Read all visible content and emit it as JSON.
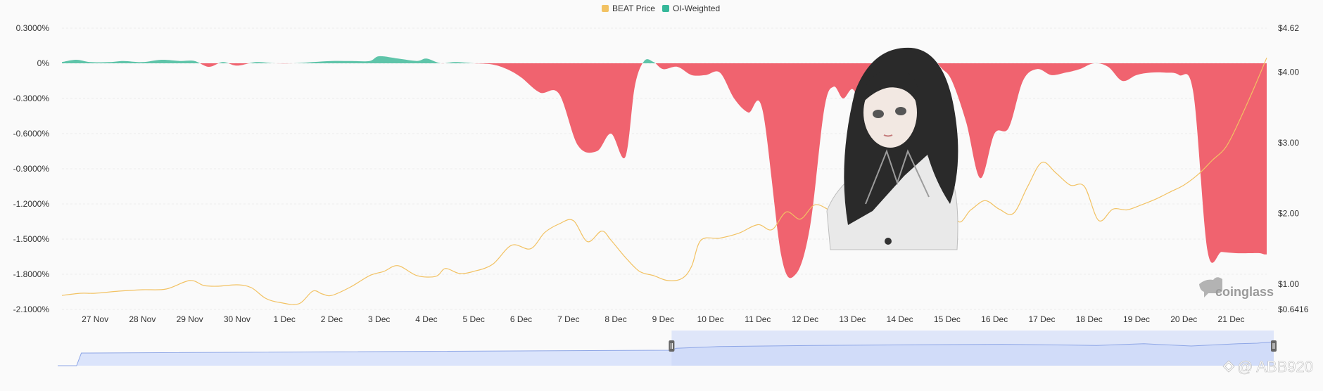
{
  "legend": [
    {
      "name": "BEAT Price",
      "color": "#f2c263"
    },
    {
      "name": "OI-Weighted",
      "color": "#36b89a"
    }
  ],
  "colors": {
    "positive_fill": "#5ec4a9",
    "negative_fill": "#f0636f",
    "price_line": "#f2c263",
    "navigator_fill": "#dbe4fb",
    "navigator_line": "#8ea6e6"
  },
  "watermark": "coinglass",
  "credit": "@ ABB920",
  "illustration": "anime-girl-portrait",
  "chart_data": {
    "type": "area",
    "y_left": {
      "ticks": [
        "0.3000%",
        "0%",
        "-0.3000%",
        "-0.6000%",
        "-0.9000%",
        "-1.2000%",
        "-1.5000%",
        "-1.8000%",
        "-2.1000%"
      ],
      "min": -2.1,
      "max": 0.3,
      "unit": "%"
    },
    "y_right": {
      "ticks": [
        "$4.62",
        "$4.00",
        "$3.00",
        "$2.00",
        "$1.00",
        "$0.6416"
      ],
      "tick_values": [
        4.62,
        4.0,
        3.0,
        2.0,
        1.0,
        0.6416
      ],
      "min": 0.6416,
      "max": 4.62
    },
    "x": {
      "ticks": [
        "27 Nov",
        "28 Nov",
        "29 Nov",
        "30 Nov",
        "1 Dec",
        "2 Dec",
        "3 Dec",
        "4 Dec",
        "5 Dec",
        "6 Dec",
        "7 Dec",
        "8 Dec",
        "9 Dec",
        "10 Dec",
        "11 Dec",
        "12 Dec",
        "13 Dec",
        "14 Dec",
        "15 Dec",
        "16 Dec",
        "17 Dec",
        "18 Dec",
        "19 Dec",
        "20 Dec",
        "21 Dec"
      ],
      "tick_positions": [
        1,
        2,
        3,
        4,
        5,
        6,
        7,
        8,
        9,
        10,
        11,
        12,
        13,
        14,
        15,
        16,
        17,
        18,
        19,
        20,
        21,
        22,
        23,
        24,
        25
      ],
      "min": 0.3,
      "max": 25.75
    },
    "series": [
      {
        "name": "OI-Weighted",
        "axis": "left",
        "x": [
          0.3,
          0.6,
          0.9,
          1.3,
          1.6,
          2.0,
          2.4,
          2.8,
          3.1,
          3.4,
          3.7,
          4.0,
          4.4,
          4.8,
          5.2,
          5.6,
          6.0,
          6.4,
          6.8,
          7.0,
          7.4,
          7.8,
          8.0,
          8.3,
          8.6,
          9.0,
          9.4,
          9.7,
          10.0,
          10.4,
          10.8,
          11.2,
          11.6,
          11.9,
          12.2,
          12.4,
          12.6,
          12.8,
          13.0,
          13.3,
          13.6,
          13.9,
          14.2,
          14.5,
          14.8,
          15.1,
          15.5,
          15.8,
          16.1,
          16.4,
          16.6,
          16.8,
          17.0,
          17.2,
          17.4,
          17.7,
          18.0,
          18.3,
          18.5,
          18.7,
          18.9,
          19.1,
          19.4,
          19.7,
          20.0,
          20.3,
          20.6,
          20.9,
          21.2,
          21.5,
          21.8,
          22.1,
          22.4,
          22.7,
          23.0,
          23.3,
          23.6,
          23.9,
          24.2,
          24.5,
          24.8,
          25.1,
          25.4,
          25.6,
          25.7,
          25.75
        ],
        "y": [
          0.01,
          0.03,
          0.01,
          0.01,
          0.02,
          0.01,
          0.03,
          0.02,
          0.02,
          -0.03,
          0.01,
          -0.02,
          0.01,
          0.0,
          0.0,
          0.01,
          0.02,
          0.02,
          0.02,
          0.06,
          0.04,
          0.02,
          0.04,
          0.0,
          0.01,
          0.0,
          -0.01,
          -0.05,
          -0.12,
          -0.25,
          -0.26,
          -0.7,
          -0.75,
          -0.6,
          -0.8,
          -0.2,
          0.02,
          0.01,
          -0.05,
          -0.03,
          -0.1,
          -0.1,
          -0.08,
          -0.3,
          -0.42,
          -0.4,
          -1.65,
          -1.8,
          -1.4,
          -0.4,
          -0.2,
          -0.3,
          -0.22,
          -0.35,
          -0.25,
          -0.1,
          -0.02,
          -0.05,
          -0.2,
          0.01,
          -0.05,
          -0.15,
          -0.5,
          -0.98,
          -0.6,
          -0.55,
          -0.15,
          -0.05,
          -0.1,
          -0.08,
          -0.05,
          0.0,
          -0.03,
          -0.15,
          -0.1,
          -0.08,
          -0.08,
          -0.1,
          -0.25,
          -1.6,
          -1.61,
          -1.62,
          -1.62,
          -1.62,
          -1.63,
          -1.63
        ]
      },
      {
        "name": "BEAT Price",
        "axis": "right",
        "x": [
          0.3,
          0.7,
          1.0,
          1.5,
          2.0,
          2.5,
          3.0,
          3.3,
          3.6,
          4.0,
          4.3,
          4.6,
          4.9,
          5.3,
          5.6,
          5.8,
          6.0,
          6.4,
          6.8,
          7.1,
          7.4,
          7.8,
          8.2,
          8.4,
          8.7,
          9.0,
          9.4,
          9.8,
          10.2,
          10.5,
          10.8,
          11.1,
          11.4,
          11.7,
          11.9,
          12.2,
          12.5,
          12.8,
          13.1,
          13.4,
          13.6,
          13.8,
          14.2,
          14.6,
          15.0,
          15.3,
          15.6,
          15.9,
          16.2,
          16.5,
          16.8,
          17.1,
          17.4,
          17.7,
          18.0,
          18.3,
          18.6,
          18.9,
          19.2,
          19.5,
          19.8,
          20.1,
          20.4,
          20.7,
          21.0,
          21.3,
          21.6,
          21.9,
          22.2,
          22.5,
          22.8,
          23.1,
          23.4,
          23.7,
          24.0,
          24.3,
          24.6,
          24.9,
          25.2,
          25.5,
          25.75
        ],
        "y": [
          0.84,
          0.87,
          0.87,
          0.9,
          0.92,
          0.93,
          1.05,
          0.98,
          0.97,
          0.99,
          0.95,
          0.8,
          0.74,
          0.72,
          0.9,
          0.86,
          0.84,
          0.96,
          1.12,
          1.18,
          1.26,
          1.12,
          1.11,
          1.22,
          1.15,
          1.18,
          1.28,
          1.55,
          1.5,
          1.73,
          1.85,
          1.9,
          1.6,
          1.75,
          1.62,
          1.38,
          1.18,
          1.12,
          1.05,
          1.08,
          1.25,
          1.62,
          1.65,
          1.72,
          1.84,
          1.77,
          2.02,
          1.92,
          2.12,
          2.05,
          1.93,
          1.56,
          1.76,
          2.24,
          2.71,
          3.0,
          2.88,
          2.85,
          1.92,
          2.05,
          2.18,
          2.06,
          2.0,
          2.38,
          2.72,
          2.57,
          2.4,
          2.38,
          1.9,
          2.06,
          2.05,
          2.12,
          2.2,
          2.3,
          2.4,
          2.55,
          2.75,
          2.95,
          3.35,
          3.8,
          4.2
        ]
      }
    ],
    "navigator": {
      "x": [
        0.0,
        0.4,
        0.5,
        13.0,
        13.1,
        14.0,
        16.0,
        18.0,
        20.0,
        22.0,
        23.0,
        24.0,
        25.0,
        25.4,
        25.75
      ],
      "y": [
        0.0,
        0.0,
        0.45,
        0.55,
        0.62,
        0.68,
        0.72,
        0.74,
        0.76,
        0.72,
        0.78,
        0.7,
        0.78,
        0.8,
        0.85
      ],
      "selection_start": 13.0,
      "selection_end": 25.75
    }
  }
}
